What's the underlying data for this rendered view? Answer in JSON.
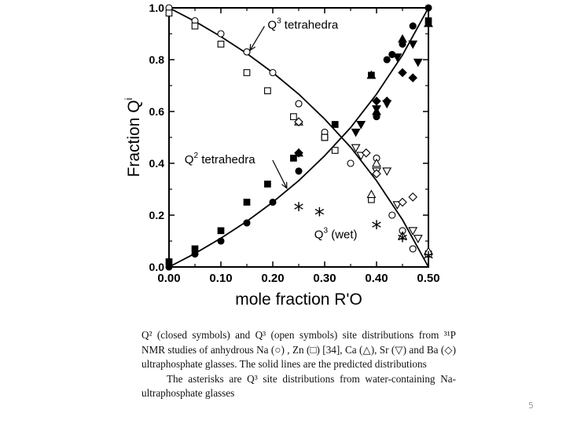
{
  "chart_data": {
    "type": "scatter",
    "title": "",
    "xlabel": "mole fraction R'O",
    "ylabel": "Fraction Q",
    "ylabel_sup": "i",
    "xlim": [
      0.0,
      0.5
    ],
    "ylim": [
      0.0,
      1.0
    ],
    "x_ticks": [
      "0.00",
      "0.10",
      "0.20",
      "0.30",
      "0.40",
      "0.50"
    ],
    "y_ticks": [
      "0.0",
      "0.2",
      "0.4",
      "0.6",
      "0.8",
      "1.0"
    ],
    "x_tick_values": [
      0.0,
      0.1,
      0.2,
      0.3,
      0.4,
      0.5
    ],
    "y_tick_values": [
      0.0,
      0.2,
      0.4,
      0.6,
      0.8,
      1.0
    ],
    "annotations": {
      "q3": {
        "base": "Q",
        "sup": "3",
        "rest": " tetrahedra",
        "x": 0.15,
        "y": 0.83,
        "tx": 0.19,
        "ty": 0.92
      },
      "q2": {
        "base": "Q",
        "sup": "2",
        "rest": " tetrahedra",
        "x": 0.23,
        "y": 0.31,
        "tx": 0.03,
        "ty": 0.4
      },
      "q3wet": {
        "base": "Q",
        "sup": "3",
        "rest": " (wet)",
        "tx": 0.28,
        "ty": 0.11
      }
    },
    "predicted_lines": [
      {
        "name": "Q3 predicted",
        "x": [
          0.0,
          0.05,
          0.1,
          0.15,
          0.2,
          0.25,
          0.3,
          0.35,
          0.4,
          0.45,
          0.5
        ],
        "y": [
          1.0,
          0.948,
          0.889,
          0.824,
          0.75,
          0.667,
          0.571,
          0.462,
          0.333,
          0.182,
          0.0
        ]
      },
      {
        "name": "Q2 predicted",
        "x": [
          0.0,
          0.05,
          0.1,
          0.15,
          0.2,
          0.25,
          0.3,
          0.35,
          0.4,
          0.45,
          0.5
        ],
        "y": [
          0.0,
          0.052,
          0.111,
          0.176,
          0.25,
          0.333,
          0.429,
          0.538,
          0.667,
          0.818,
          1.0
        ]
      }
    ],
    "series": [
      {
        "name": "Na Q2",
        "symbol": "circle",
        "filled": true,
        "x": [
          0.0,
          0.05,
          0.1,
          0.15,
          0.2,
          0.25,
          0.3,
          0.4,
          0.42,
          0.43,
          0.45,
          0.47,
          0.5
        ],
        "y": [
          0.0,
          0.05,
          0.1,
          0.17,
          0.25,
          0.37,
          0.5,
          0.58,
          0.8,
          0.82,
          0.86,
          0.93,
          1.0
        ]
      },
      {
        "name": "Na Q3",
        "symbol": "circle",
        "filled": false,
        "x": [
          0.0,
          0.05,
          0.1,
          0.15,
          0.2,
          0.25,
          0.3,
          0.35,
          0.4,
          0.43,
          0.45,
          0.47
        ],
        "y": [
          1.0,
          0.95,
          0.9,
          0.83,
          0.75,
          0.63,
          0.52,
          0.4,
          0.42,
          0.2,
          0.14,
          0.07
        ]
      },
      {
        "name": "Zn Q2",
        "symbol": "square",
        "filled": true,
        "x": [
          0.0,
          0.05,
          0.1,
          0.15,
          0.19,
          0.24,
          0.3,
          0.32,
          0.39,
          0.5
        ],
        "y": [
          0.02,
          0.07,
          0.14,
          0.25,
          0.32,
          0.42,
          0.5,
          0.55,
          0.74,
          0.95
        ]
      },
      {
        "name": "Zn Q3",
        "symbol": "square",
        "filled": false,
        "x": [
          0.0,
          0.05,
          0.1,
          0.15,
          0.19,
          0.24,
          0.3,
          0.32,
          0.39,
          0.5
        ],
        "y": [
          0.98,
          0.93,
          0.86,
          0.75,
          0.68,
          0.58,
          0.5,
          0.45,
          0.26,
          0.05
        ]
      },
      {
        "name": "Ca Q2",
        "symbol": "triangle-up",
        "filled": true,
        "x": [
          0.25,
          0.39,
          0.4,
          0.45,
          0.5
        ],
        "y": [
          0.44,
          0.74,
          0.6,
          0.88,
          0.94
        ]
      },
      {
        "name": "Ca Q3",
        "symbol": "triangle-up",
        "filled": false,
        "x": [
          0.25,
          0.39,
          0.4,
          0.45,
          0.5
        ],
        "y": [
          0.56,
          0.28,
          0.4,
          0.12,
          0.06
        ]
      },
      {
        "name": "Sr Q2",
        "symbol": "triangle-down",
        "filled": true,
        "x": [
          0.36,
          0.37,
          0.4,
          0.42,
          0.44,
          0.47,
          0.48
        ],
        "y": [
          0.52,
          0.55,
          0.61,
          0.63,
          0.81,
          0.86,
          0.79
        ]
      },
      {
        "name": "Sr Q3",
        "symbol": "triangle-down",
        "filled": false,
        "x": [
          0.36,
          0.37,
          0.4,
          0.42,
          0.44,
          0.47,
          0.48
        ],
        "y": [
          0.46,
          0.43,
          0.37,
          0.37,
          0.24,
          0.14,
          0.11
        ]
      },
      {
        "name": "Ba Q2",
        "symbol": "diamond",
        "filled": true,
        "x": [
          0.25,
          0.4,
          0.42,
          0.45,
          0.47
        ],
        "y": [
          0.44,
          0.64,
          0.64,
          0.75,
          0.73
        ]
      },
      {
        "name": "Ba Q3",
        "symbol": "diamond",
        "filled": false,
        "x": [
          0.25,
          0.38,
          0.4,
          0.45,
          0.47
        ],
        "y": [
          0.56,
          0.44,
          0.36,
          0.25,
          0.27
        ]
      },
      {
        "name": "Q3 (wet)",
        "symbol": "asterisk",
        "filled": true,
        "x": [
          0.25,
          0.29,
          0.4,
          0.45,
          0.5
        ],
        "y": [
          0.22,
          0.2,
          0.15,
          0.1,
          0.03
        ]
      }
    ]
  },
  "caption": {
    "para1": "Q² (closed symbols) and Q³ (open symbols) site distributions from ³¹P NMR studies of anhydrous Na (○) , Zn (□) [34], Ca (△), Sr (▽) and Ba (◇) ultraphosphate glasses. The solid lines are the predicted distributions",
    "para2": "The asterisks are Q³ site distributions from water-containing Na-ultraphosphate glasses"
  },
  "page_number": "5"
}
